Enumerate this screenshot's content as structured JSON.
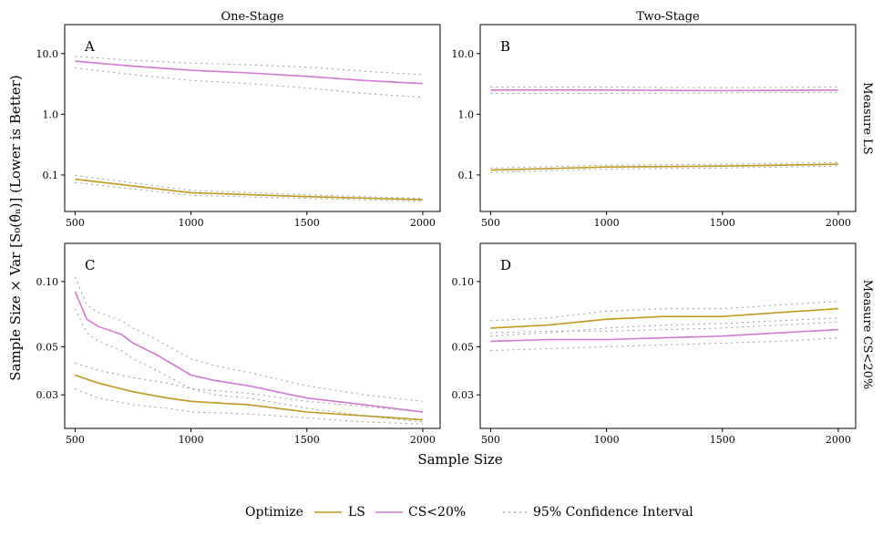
{
  "figure": {
    "x_label": "Sample Size",
    "y_label": "Sample Size × Var [S₀(θ̂ₙ)] (Lower is Better)",
    "column_titles": [
      "One-Stage",
      "Two-Stage"
    ],
    "row_titles": [
      "Measure LS",
      "Measure CS<20%"
    ]
  },
  "legend": {
    "title": "Optimize",
    "ls_label": "LS",
    "cs_label": "CS<20%",
    "ci_label": "95% Confidence Interval"
  },
  "colors": {
    "LS": "#c2971f",
    "CS": "#d27ad4",
    "ci": "#9a9a9a"
  },
  "chart_data": [
    {
      "panel": "A",
      "column": "One-Stage",
      "row": "Measure LS",
      "type": "line",
      "x_scale": "linear",
      "y_scale": "log",
      "xlim": [
        455,
        2075
      ],
      "ylim": [
        0.025,
        30
      ],
      "x_ticks": [
        500,
        1000,
        1500,
        2000
      ],
      "y_ticks": [
        0.1,
        1.0,
        10.0
      ],
      "y_tick_labels": [
        "0.1",
        "1.0",
        "10.0"
      ],
      "series": [
        {
          "name": "LS",
          "x": [
            500,
            1000,
            1500,
            2000
          ],
          "y": [
            0.085,
            0.051,
            0.044,
            0.039
          ],
          "ci_low": [
            0.075,
            0.046,
            0.041,
            0.037
          ],
          "ci_high": [
            0.098,
            0.056,
            0.047,
            0.041
          ]
        },
        {
          "name": "CS<20%",
          "x": [
            500,
            750,
            1000,
            1250,
            1500,
            1750,
            2000
          ],
          "y": [
            7.5,
            6.2,
            5.3,
            4.8,
            4.2,
            3.6,
            3.2
          ],
          "ci_low": [
            5.8,
            4.5,
            3.6,
            3.2,
            2.7,
            2.2,
            1.9
          ],
          "ci_high": [
            9.0,
            7.7,
            7.0,
            6.5,
            6.0,
            5.1,
            4.5
          ]
        }
      ]
    },
    {
      "panel": "B",
      "column": "Two-Stage",
      "row": "Measure LS",
      "type": "line",
      "x_scale": "linear",
      "y_scale": "log",
      "xlim": [
        455,
        2075
      ],
      "ylim": [
        0.025,
        30
      ],
      "x_ticks": [
        500,
        1000,
        1500,
        2000
      ],
      "y_ticks": [
        0.1,
        1.0,
        10.0
      ],
      "y_tick_labels": [
        "0.1",
        "1.0",
        "10.0"
      ],
      "series": [
        {
          "name": "LS",
          "x": [
            500,
            1000,
            1500,
            2000
          ],
          "y": [
            0.12,
            0.135,
            0.14,
            0.15
          ],
          "ci_low": [
            0.11,
            0.125,
            0.13,
            0.14
          ],
          "ci_high": [
            0.13,
            0.145,
            0.15,
            0.16
          ]
        },
        {
          "name": "CS<20%",
          "x": [
            500,
            1000,
            1500,
            2000
          ],
          "y": [
            2.5,
            2.5,
            2.45,
            2.5
          ],
          "ci_low": [
            2.2,
            2.2,
            2.25,
            2.3
          ],
          "ci_high": [
            2.8,
            2.8,
            2.75,
            2.8
          ]
        }
      ]
    },
    {
      "panel": "C",
      "column": "One-Stage",
      "row": "Measure CS<20%",
      "type": "line",
      "x_scale": "linear",
      "y_scale": "log",
      "xlim": [
        455,
        2075
      ],
      "ylim": [
        0.021,
        0.15
      ],
      "x_ticks": [
        500,
        1000,
        1500,
        2000
      ],
      "y_ticks": [
        0.03,
        0.05,
        0.1
      ],
      "y_tick_labels": [
        "0.03",
        "0.05",
        "0.10"
      ],
      "series": [
        {
          "name": "LS",
          "x": [
            500,
            600,
            750,
            900,
            1000,
            1250,
            1500,
            1750,
            2000
          ],
          "y": [
            0.037,
            0.034,
            0.031,
            0.029,
            0.028,
            0.027,
            0.025,
            0.024,
            0.023
          ],
          "ci_low": [
            0.032,
            0.029,
            0.027,
            0.026,
            0.025,
            0.0245,
            0.0235,
            0.0225,
            0.022
          ],
          "ci_high": [
            0.042,
            0.039,
            0.036,
            0.034,
            0.032,
            0.0305,
            0.028,
            0.0265,
            0.025
          ]
        },
        {
          "name": "CS<20%",
          "x": [
            500,
            550,
            600,
            700,
            750,
            850,
            1000,
            1100,
            1250,
            1500,
            1750,
            2000
          ],
          "y": [
            0.09,
            0.067,
            0.062,
            0.057,
            0.052,
            0.046,
            0.037,
            0.035,
            0.033,
            0.029,
            0.027,
            0.025
          ],
          "ci_low": [
            0.075,
            0.058,
            0.053,
            0.048,
            0.044,
            0.039,
            0.032,
            0.03,
            0.029,
            0.026,
            0.024,
            0.0225
          ],
          "ci_high": [
            0.105,
            0.078,
            0.072,
            0.066,
            0.061,
            0.054,
            0.044,
            0.041,
            0.038,
            0.033,
            0.03,
            0.028
          ]
        }
      ]
    },
    {
      "panel": "D",
      "column": "Two-Stage",
      "row": "Measure CS<20%",
      "type": "line",
      "x_scale": "linear",
      "y_scale": "log",
      "xlim": [
        455,
        2075
      ],
      "ylim": [
        0.021,
        0.15
      ],
      "x_ticks": [
        500,
        1000,
        1500,
        2000
      ],
      "y_ticks": [
        0.03,
        0.05,
        0.1
      ],
      "y_tick_labels": [
        "0.03",
        "0.05",
        "0.10"
      ],
      "series": [
        {
          "name": "LS",
          "x": [
            500,
            750,
            1000,
            1250,
            1500,
            1750,
            2000
          ],
          "y": [
            0.061,
            0.063,
            0.067,
            0.069,
            0.069,
            0.072,
            0.075
          ],
          "ci_low": [
            0.056,
            0.058,
            0.061,
            0.063,
            0.064,
            0.066,
            0.068
          ],
          "ci_high": [
            0.066,
            0.068,
            0.073,
            0.075,
            0.075,
            0.078,
            0.081
          ]
        },
        {
          "name": "CS<20%",
          "x": [
            500,
            750,
            1000,
            1250,
            1500,
            1750,
            2000
          ],
          "y": [
            0.053,
            0.054,
            0.054,
            0.055,
            0.056,
            0.058,
            0.06
          ],
          "ci_low": [
            0.048,
            0.049,
            0.05,
            0.051,
            0.052,
            0.053,
            0.055
          ],
          "ci_high": [
            0.058,
            0.059,
            0.059,
            0.06,
            0.061,
            0.063,
            0.065
          ]
        }
      ]
    }
  ]
}
